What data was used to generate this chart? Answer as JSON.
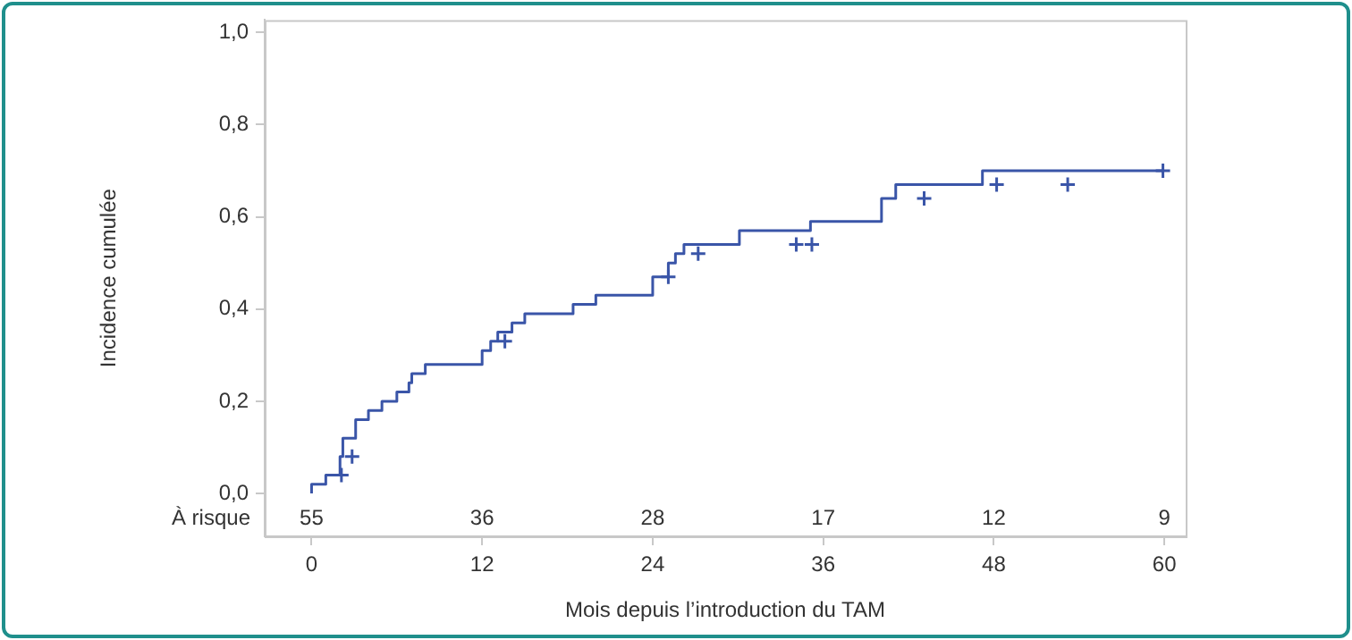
{
  "chart_data": {
    "type": "step",
    "xlabel": "Mois depuis l’introduction du TAM",
    "ylabel": "Incidence cumulée",
    "series": [
      {
        "color": "#3a55a8",
        "marker": "none",
        "x": [
          0,
          1,
          2,
          2.2,
          3.1,
          4,
          4.95,
          6,
          6.85,
          7.05,
          8,
          12,
          12.6,
          13.1,
          14.1,
          15,
          18.4,
          20,
          24,
          25.1,
          25.6,
          26.2,
          30.1,
          35.1,
          40.1,
          41.1,
          47.2,
          54.3,
          59.9
        ],
        "values": [
          0,
          0.02,
          0.04,
          0.08,
          0.12,
          0.16,
          0.18,
          0.2,
          0.22,
          0.24,
          0.26,
          0.28,
          0.31,
          0.33,
          0.35,
          0.37,
          0.39,
          0.41,
          0.43,
          0.47,
          0.5,
          0.52,
          0.54,
          0.57,
          0.59,
          0.64,
          0.67,
          0.7,
          0.7
        ]
      },
      {
        "type": "scatter",
        "color": "#3a55a8",
        "marker": "cross",
        "x": [
          2.1,
          2.85,
          13.6,
          25.1,
          27.2,
          34.1,
          35.2,
          43.1,
          48.2,
          53.2,
          59.9
        ],
        "values": [
          0.04,
          0.08,
          0.33,
          0.47,
          0.52,
          0.54,
          0.54,
          0.64,
          0.67,
          0.67,
          0.7
        ]
      }
    ],
    "xlim": [
      -3.3,
      61.5
    ],
    "xticks": [
      0,
      12,
      24,
      36,
      48,
      60
    ],
    "ylim": [
      -0.093,
      1.027
    ],
    "yticks": [
      {
        "value": 0,
        "label": "0,0"
      },
      {
        "value": 0.2,
        "label": "0,2"
      },
      {
        "value": 0.4,
        "label": "0,4"
      },
      {
        "value": 0.6,
        "label": "0,6"
      },
      {
        "value": 0.8,
        "label": "0,8"
      },
      {
        "value": 1,
        "label": "1,0"
      }
    ],
    "grid": false,
    "legend": false,
    "annotations": [
      "À risque",
      "55",
      "36",
      "28",
      "17",
      "12",
      "9"
    ]
  }
}
